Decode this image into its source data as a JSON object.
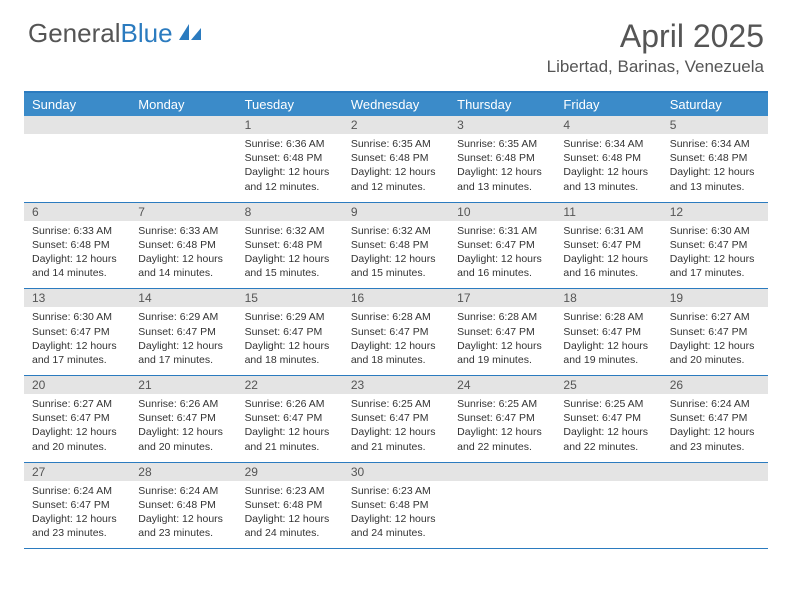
{
  "logo": {
    "text1": "General",
    "text2": "Blue"
  },
  "title": "April 2025",
  "location": "Libertad, Barinas, Venezuela",
  "colors": {
    "header_bar": "#3b8bc9",
    "border": "#2b7bbf",
    "daynum_bg": "#e4e4e4",
    "text_gray": "#555555"
  },
  "dayNames": [
    "Sunday",
    "Monday",
    "Tuesday",
    "Wednesday",
    "Thursday",
    "Friday",
    "Saturday"
  ],
  "weeks": [
    [
      {
        "n": "",
        "sr": "",
        "ss": "",
        "dl": ""
      },
      {
        "n": "",
        "sr": "",
        "ss": "",
        "dl": ""
      },
      {
        "n": "1",
        "sr": "Sunrise: 6:36 AM",
        "ss": "Sunset: 6:48 PM",
        "dl": "Daylight: 12 hours and 12 minutes."
      },
      {
        "n": "2",
        "sr": "Sunrise: 6:35 AM",
        "ss": "Sunset: 6:48 PM",
        "dl": "Daylight: 12 hours and 12 minutes."
      },
      {
        "n": "3",
        "sr": "Sunrise: 6:35 AM",
        "ss": "Sunset: 6:48 PM",
        "dl": "Daylight: 12 hours and 13 minutes."
      },
      {
        "n": "4",
        "sr": "Sunrise: 6:34 AM",
        "ss": "Sunset: 6:48 PM",
        "dl": "Daylight: 12 hours and 13 minutes."
      },
      {
        "n": "5",
        "sr": "Sunrise: 6:34 AM",
        "ss": "Sunset: 6:48 PM",
        "dl": "Daylight: 12 hours and 13 minutes."
      }
    ],
    [
      {
        "n": "6",
        "sr": "Sunrise: 6:33 AM",
        "ss": "Sunset: 6:48 PM",
        "dl": "Daylight: 12 hours and 14 minutes."
      },
      {
        "n": "7",
        "sr": "Sunrise: 6:33 AM",
        "ss": "Sunset: 6:48 PM",
        "dl": "Daylight: 12 hours and 14 minutes."
      },
      {
        "n": "8",
        "sr": "Sunrise: 6:32 AM",
        "ss": "Sunset: 6:48 PM",
        "dl": "Daylight: 12 hours and 15 minutes."
      },
      {
        "n": "9",
        "sr": "Sunrise: 6:32 AM",
        "ss": "Sunset: 6:48 PM",
        "dl": "Daylight: 12 hours and 15 minutes."
      },
      {
        "n": "10",
        "sr": "Sunrise: 6:31 AM",
        "ss": "Sunset: 6:47 PM",
        "dl": "Daylight: 12 hours and 16 minutes."
      },
      {
        "n": "11",
        "sr": "Sunrise: 6:31 AM",
        "ss": "Sunset: 6:47 PM",
        "dl": "Daylight: 12 hours and 16 minutes."
      },
      {
        "n": "12",
        "sr": "Sunrise: 6:30 AM",
        "ss": "Sunset: 6:47 PM",
        "dl": "Daylight: 12 hours and 17 minutes."
      }
    ],
    [
      {
        "n": "13",
        "sr": "Sunrise: 6:30 AM",
        "ss": "Sunset: 6:47 PM",
        "dl": "Daylight: 12 hours and 17 minutes."
      },
      {
        "n": "14",
        "sr": "Sunrise: 6:29 AM",
        "ss": "Sunset: 6:47 PM",
        "dl": "Daylight: 12 hours and 17 minutes."
      },
      {
        "n": "15",
        "sr": "Sunrise: 6:29 AM",
        "ss": "Sunset: 6:47 PM",
        "dl": "Daylight: 12 hours and 18 minutes."
      },
      {
        "n": "16",
        "sr": "Sunrise: 6:28 AM",
        "ss": "Sunset: 6:47 PM",
        "dl": "Daylight: 12 hours and 18 minutes."
      },
      {
        "n": "17",
        "sr": "Sunrise: 6:28 AM",
        "ss": "Sunset: 6:47 PM",
        "dl": "Daylight: 12 hours and 19 minutes."
      },
      {
        "n": "18",
        "sr": "Sunrise: 6:28 AM",
        "ss": "Sunset: 6:47 PM",
        "dl": "Daylight: 12 hours and 19 minutes."
      },
      {
        "n": "19",
        "sr": "Sunrise: 6:27 AM",
        "ss": "Sunset: 6:47 PM",
        "dl": "Daylight: 12 hours and 20 minutes."
      }
    ],
    [
      {
        "n": "20",
        "sr": "Sunrise: 6:27 AM",
        "ss": "Sunset: 6:47 PM",
        "dl": "Daylight: 12 hours and 20 minutes."
      },
      {
        "n": "21",
        "sr": "Sunrise: 6:26 AM",
        "ss": "Sunset: 6:47 PM",
        "dl": "Daylight: 12 hours and 20 minutes."
      },
      {
        "n": "22",
        "sr": "Sunrise: 6:26 AM",
        "ss": "Sunset: 6:47 PM",
        "dl": "Daylight: 12 hours and 21 minutes."
      },
      {
        "n": "23",
        "sr": "Sunrise: 6:25 AM",
        "ss": "Sunset: 6:47 PM",
        "dl": "Daylight: 12 hours and 21 minutes."
      },
      {
        "n": "24",
        "sr": "Sunrise: 6:25 AM",
        "ss": "Sunset: 6:47 PM",
        "dl": "Daylight: 12 hours and 22 minutes."
      },
      {
        "n": "25",
        "sr": "Sunrise: 6:25 AM",
        "ss": "Sunset: 6:47 PM",
        "dl": "Daylight: 12 hours and 22 minutes."
      },
      {
        "n": "26",
        "sr": "Sunrise: 6:24 AM",
        "ss": "Sunset: 6:47 PM",
        "dl": "Daylight: 12 hours and 23 minutes."
      }
    ],
    [
      {
        "n": "27",
        "sr": "Sunrise: 6:24 AM",
        "ss": "Sunset: 6:47 PM",
        "dl": "Daylight: 12 hours and 23 minutes."
      },
      {
        "n": "28",
        "sr": "Sunrise: 6:24 AM",
        "ss": "Sunset: 6:48 PM",
        "dl": "Daylight: 12 hours and 23 minutes."
      },
      {
        "n": "29",
        "sr": "Sunrise: 6:23 AM",
        "ss": "Sunset: 6:48 PM",
        "dl": "Daylight: 12 hours and 24 minutes."
      },
      {
        "n": "30",
        "sr": "Sunrise: 6:23 AM",
        "ss": "Sunset: 6:48 PM",
        "dl": "Daylight: 12 hours and 24 minutes."
      },
      {
        "n": "",
        "sr": "",
        "ss": "",
        "dl": ""
      },
      {
        "n": "",
        "sr": "",
        "ss": "",
        "dl": ""
      },
      {
        "n": "",
        "sr": "",
        "ss": "",
        "dl": ""
      }
    ]
  ]
}
